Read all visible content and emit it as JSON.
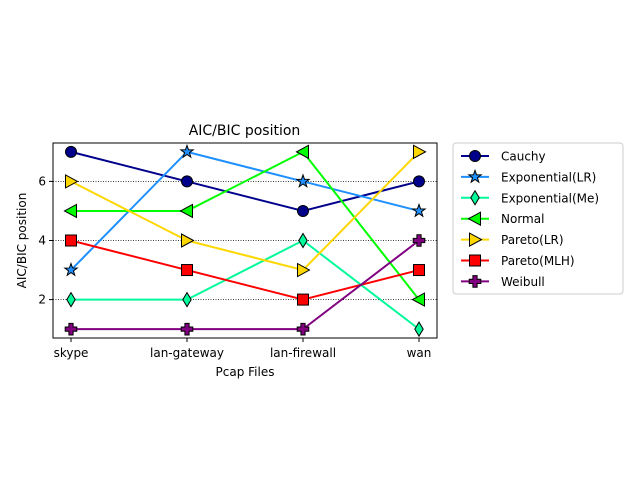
{
  "chart_data": {
    "type": "line",
    "title": "AIC/BIC position",
    "xlabel": "Pcap Files",
    "ylabel": "AIC/BIC position",
    "categories": [
      "skype",
      "lan-gateway",
      "lan-firewall",
      "wan"
    ],
    "yticks": [
      2,
      4,
      6
    ],
    "ylim": [
      0.7,
      7.3
    ],
    "grid": "y, dotted",
    "legend_position": "outside-right",
    "series": [
      {
        "name": "Cauchy",
        "values": [
          7,
          6,
          5,
          6
        ],
        "color": "#00008b",
        "marker": "circle"
      },
      {
        "name": "Exponential(LR)",
        "values": [
          3,
          7,
          6,
          5
        ],
        "color": "#1e90ff",
        "marker": "star"
      },
      {
        "name": "Exponential(Me)",
        "values": [
          2,
          2,
          4,
          1
        ],
        "color": "#00fa9a",
        "marker": "thin-diamond"
      },
      {
        "name": "Normal",
        "values": [
          5,
          5,
          7,
          2
        ],
        "color": "#00ff00",
        "marker": "triangle-left"
      },
      {
        "name": "Pareto(LR)",
        "values": [
          6,
          4,
          3,
          7
        ],
        "color": "#ffd700",
        "marker": "triangle-right"
      },
      {
        "name": "Pareto(MLH)",
        "values": [
          4,
          3,
          2,
          3
        ],
        "color": "#ff0000",
        "marker": "square"
      },
      {
        "name": "Weibull",
        "values": [
          1,
          1,
          1,
          4
        ],
        "color": "#800080",
        "marker": "plus"
      }
    ]
  }
}
